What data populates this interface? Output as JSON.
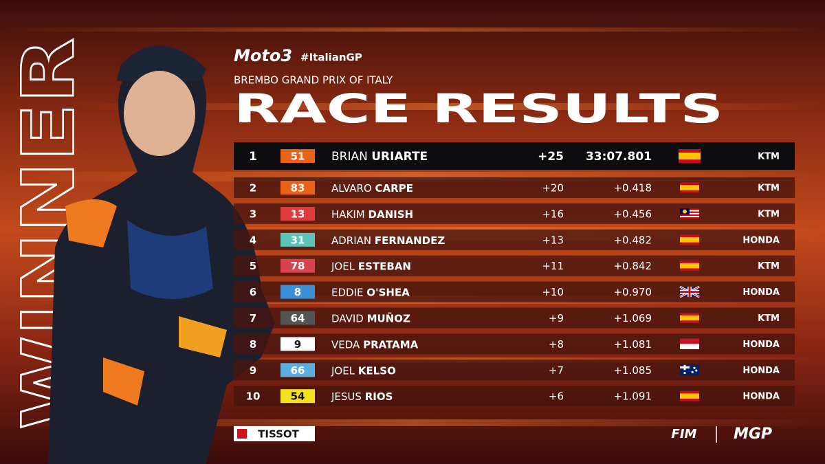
{
  "header": {
    "brand": "Moto3",
    "hashtag": "#ItalianGP",
    "event": "BREMBO GRAND PRIX OF ITALY",
    "title": "RACE RESULTS",
    "side_label": "WINNER"
  },
  "table": {
    "rows": [
      {
        "position": 1,
        "number": 51,
        "number_color": "#e8621a",
        "first_name": "BRIAN",
        "last_name": "URIARTE",
        "points": "+25",
        "time": "33:07.801",
        "team": "KTM"
      },
      {
        "position": 2,
        "number": 83,
        "number_color": "#e8621a",
        "first_name": "ALVARO",
        "last_name": "CARPE",
        "points": "+20",
        "time": "+0.418",
        "team": "KTM"
      },
      {
        "position": 3,
        "number": 13,
        "number_color": "#e03a3e",
        "first_name": "HAKIM",
        "last_name": "DANISH",
        "points": "+16",
        "time": "+0.456",
        "team": "KTM"
      },
      {
        "position": 4,
        "number": 31,
        "number_color": "#5cc4b8",
        "first_name": "ADRIAN",
        "last_name": "FERNANDEZ",
        "points": "+13",
        "time": "+0.482",
        "team": "HONDA"
      },
      {
        "position": 5,
        "number": 78,
        "number_color": "#d9434f",
        "first_name": "JOEL",
        "last_name": "ESTEBAN",
        "points": "+11",
        "time": "+0.842",
        "team": "KTM"
      },
      {
        "position": 6,
        "number": 8,
        "number_color": "#3a8fd6",
        "first_name": "EDDIE",
        "last_name": "O'SHEA",
        "points": "+10",
        "time": "+0.970",
        "team": "HONDA"
      },
      {
        "position": 7,
        "number": 64,
        "number_color": "#555555",
        "first_name": "DAVID",
        "last_name": "MUÑOZ",
        "points": "+9",
        "time": "+1.069",
        "team": "KTM"
      },
      {
        "position": 8,
        "number": 9,
        "number_color": "#ffffff",
        "first_name": "VEDA",
        "last_name": "PRATAMA",
        "points": "+8",
        "time": "+1.081",
        "team": "HONDA"
      },
      {
        "position": 9,
        "number": 66,
        "number_color": "#5aaee0",
        "first_name": "JOEL",
        "last_name": "KELSO",
        "points": "+7",
        "time": "+1.085",
        "team": "HONDA"
      },
      {
        "position": 10,
        "number": 54,
        "number_color": "#f4e21b",
        "first_name": "JESUS",
        "last_name": "RIOS",
        "points": "+6",
        "time": "+1.091",
        "team": "HONDA"
      }
    ]
  },
  "footer": {
    "sponsor": "TISSOT",
    "federation": "FIM",
    "series_logo": "MGP"
  }
}
